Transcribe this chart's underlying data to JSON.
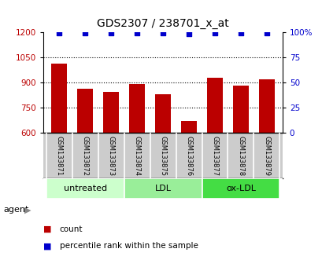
{
  "title": "GDS2307 / 238701_x_at",
  "samples": [
    "GSM133871",
    "GSM133872",
    "GSM133873",
    "GSM133874",
    "GSM133875",
    "GSM133876",
    "GSM133877",
    "GSM133878",
    "GSM133879"
  ],
  "bar_values": [
    1010,
    862,
    845,
    893,
    830,
    672,
    928,
    880,
    920
  ],
  "percentile_values": [
    99,
    99,
    99,
    99,
    99,
    98,
    99,
    99,
    99
  ],
  "bar_color": "#bb0000",
  "percentile_color": "#0000cc",
  "ylim_left": [
    600,
    1200
  ],
  "ylim_right": [
    0,
    100
  ],
  "yticks_left": [
    600,
    750,
    900,
    1050,
    1200
  ],
  "yticks_right": [
    0,
    25,
    50,
    75,
    100
  ],
  "ytick_right_labels": [
    "0",
    "25",
    "50",
    "75",
    "100%"
  ],
  "grid_values": [
    750,
    900,
    1050
  ],
  "agent_groups": [
    {
      "label": "untreated",
      "indices": [
        0,
        1,
        2
      ],
      "color": "#ccffcc"
    },
    {
      "label": "LDL",
      "indices": [
        3,
        4,
        5
      ],
      "color": "#99ee99"
    },
    {
      "label": "ox-LDL",
      "indices": [
        6,
        7,
        8
      ],
      "color": "#44dd44"
    }
  ],
  "agent_label": "agent",
  "legend_count_label": "count",
  "legend_pct_label": "percentile rank within the sample",
  "title_fontsize": 10,
  "tick_fontsize": 7.5,
  "sample_fontsize": 6,
  "agent_fontsize": 8,
  "legend_fontsize": 7.5,
  "bar_width": 0.6,
  "background_color": "#ffffff",
  "plot_bg_color": "#ffffff",
  "sample_row_color": "#cccccc",
  "divider_color": "#aaaaaa"
}
